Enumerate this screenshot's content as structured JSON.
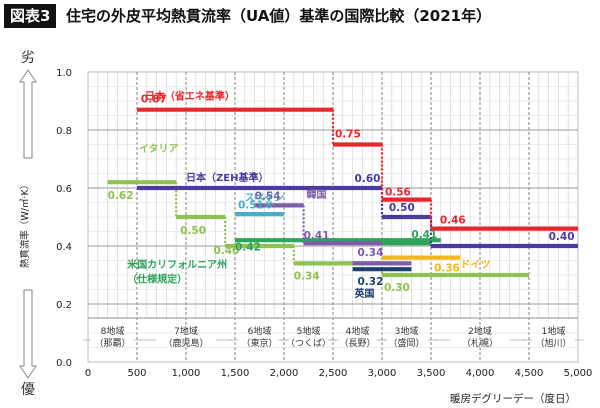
{
  "header": {
    "badge": "図表3",
    "title": "住宅の外皮平均熱貫流率（UA値）基準の国際比較（2021年）"
  },
  "chart_data": {
    "type": "line",
    "xlabel": "暖房デグリーデー（度日）",
    "ylabel": "熱貫流率（W/㎡·K）",
    "ylabel_top": "劣",
    "ylabel_bottom": "優",
    "xlim": [
      0,
      5000
    ],
    "ylim": [
      0,
      1.0
    ],
    "xticks": [
      0,
      500,
      1000,
      1500,
      2000,
      2500,
      3000,
      3500,
      4000,
      4500,
      5000
    ],
    "xtick_labels": [
      "0",
      "500",
      "1,000",
      "1,500",
      "2,000",
      "2,500",
      "3,000",
      "3,500",
      "4,000",
      "4,500",
      "5,000"
    ],
    "yticks": [
      0,
      0.2,
      0.4,
      0.6,
      0.8,
      1.0
    ],
    "ytick_labels": [
      "0.0",
      "0.2",
      "0.4",
      "0.6",
      "0.8",
      "1.0"
    ],
    "grid": true,
    "regions": [
      {
        "x": [
          0,
          500
        ],
        "label1": "8地域",
        "label2": "（那覇）"
      },
      {
        "x": [
          500,
          1500
        ],
        "label1": "7地域",
        "label2": "（鹿児島）"
      },
      {
        "x": [
          1500,
          2000
        ],
        "label1": "6地域",
        "label2": "（東京）"
      },
      {
        "x": [
          2000,
          2500
        ],
        "label1": "5地域",
        "label2": "（つくば）"
      },
      {
        "x": [
          2500,
          3000
        ],
        "label1": "4地域",
        "label2": "（長野）"
      },
      {
        "x": [
          3000,
          3500
        ],
        "label1": "3地域",
        "label2": "（盛岡）"
      },
      {
        "x": [
          3500,
          4500
        ],
        "label1": "2地域",
        "label2": "（札幌）"
      },
      {
        "x": [
          4500,
          5000
        ],
        "label1": "1地域",
        "label2": "（旭川）"
      }
    ],
    "series": [
      {
        "name": "日本（省エネ基準）",
        "color": "#e8262c",
        "segments": [
          {
            "x": [
              500,
              2500
            ],
            "y": 0.87,
            "label": "0.87"
          },
          {
            "x": [
              2500,
              3000
            ],
            "y": 0.75,
            "label": "0.75"
          },
          {
            "x": [
              3000,
              3500
            ],
            "y": 0.56,
            "label": "0.56"
          },
          {
            "x": [
              3500,
              5000
            ],
            "y": 0.46,
            "label": "0.46"
          }
        ]
      },
      {
        "name": "日本（ZEH基準）",
        "color": "#4b3aa0",
        "segments": [
          {
            "x": [
              500,
              3000
            ],
            "y": 0.6,
            "label": "0.60"
          },
          {
            "x": [
              3000,
              3500
            ],
            "y": 0.5,
            "label": "0.50"
          },
          {
            "x": [
              3500,
              5000
            ],
            "y": 0.4,
            "label": "0.40"
          }
        ]
      },
      {
        "name": "イタリア",
        "color": "#8fc351",
        "segments": [
          {
            "x": [
              200,
              900
            ],
            "y": 0.62,
            "label": "0.62"
          },
          {
            "x": [
              900,
              1400
            ],
            "y": 0.5,
            "label": "0.50"
          },
          {
            "x": [
              1400,
              2100
            ],
            "y": 0.4,
            "label": "0.40"
          },
          {
            "x": [
              2100,
              3000
            ],
            "y": 0.34,
            "label": "0.34"
          },
          {
            "x": [
              3000,
              4500
            ],
            "y": 0.3,
            "label": "0.30"
          }
        ]
      },
      {
        "name": "スペイン",
        "color": "#4bacc6",
        "segments": [
          {
            "x": [
              1500,
              2000
            ],
            "y": 0.51,
            "label": "0.51※"
          }
        ]
      },
      {
        "name": "韓国",
        "color": "#7d5ca8",
        "segments": [
          {
            "x": [
              1700,
              2200
            ],
            "y": 0.54,
            "label": "0.54"
          },
          {
            "x": [
              2200,
              3000
            ],
            "y": 0.41,
            "label": "0.41"
          },
          {
            "x": [
              2700,
              3300
            ],
            "y": 0.34,
            "label": "0.34"
          }
        ]
      },
      {
        "name": "米国カリフォルニア州（仕様規定）",
        "color": "#2ea35a",
        "segments": [
          {
            "x": [
              1500,
              3600
            ],
            "y": 0.42,
            "label": "0.42"
          },
          {
            "x": [
              3000,
              3500
            ],
            "y": 0.41,
            "label": "0.41"
          }
        ]
      },
      {
        "name": "英国",
        "color": "#1f3f6e",
        "segments": [
          {
            "x": [
              2700,
              3300
            ],
            "y": 0.32,
            "label": "0.32"
          }
        ]
      },
      {
        "name": "ドイツ",
        "color": "#f2b81c",
        "segments": [
          {
            "x": [
              3000,
              3800
            ],
            "y": 0.36,
            "label": "0.36"
          }
        ]
      }
    ],
    "series_labels": [
      {
        "text": "日本（省エネ基準）",
        "color": "#e8262c",
        "x": 580,
        "y": 0.905
      },
      {
        "text": "日本（ZEH基準）",
        "color": "#4b3aa0",
        "x": 1000,
        "y": 0.625
      },
      {
        "text": "イタリア",
        "color": "#8fc351",
        "x": 520,
        "y": 0.725
      },
      {
        "text": "スペイン",
        "color": "#4bacc6",
        "x": 1600,
        "y": 0.555
      },
      {
        "text": "韓国",
        "color": "#7d5ca8",
        "x": 2230,
        "y": 0.565
      },
      {
        "text": "米国カリフォルニア州",
        "color": "#2ea35a",
        "x": 400,
        "y": 0.325
      },
      {
        "text": "（仕様規定）",
        "color": "#2ea35a",
        "x": 400,
        "y": 0.275
      },
      {
        "text": "英国",
        "color": "#1f3f6e",
        "x": 2720,
        "y": 0.225
      },
      {
        "text": "ドイツ",
        "color": "#f2b81c",
        "x": 3800,
        "y": 0.325
      }
    ]
  }
}
